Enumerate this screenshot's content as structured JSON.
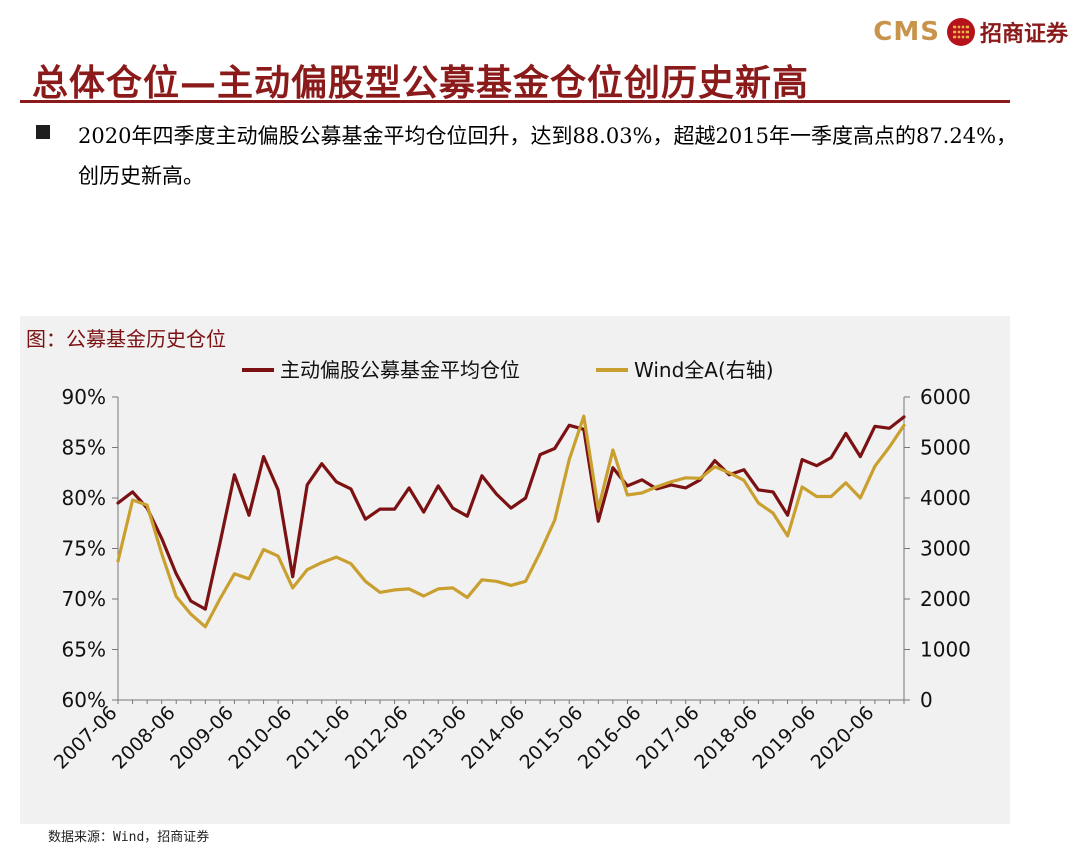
{
  "header": {
    "brand_cms": "CMS",
    "brand_cn": "招商证券",
    "title": "总体仓位—主动偏股型公募基金仓位创历史新高"
  },
  "bullet": {
    "text": "2020年四季度主动偏股公募基金平均仓位回升，达到88.03%，超越2015年一季度高点的87.24%，创历史新高。"
  },
  "chart_data": {
    "type": "line",
    "title": "图：公募基金历史仓位",
    "x": [
      "2007-06",
      "2007-09",
      "2007-12",
      "2008-03",
      "2008-06",
      "2008-09",
      "2008-12",
      "2009-03",
      "2009-06",
      "2009-09",
      "2009-12",
      "2010-03",
      "2010-06",
      "2010-09",
      "2010-12",
      "2011-03",
      "2011-06",
      "2011-09",
      "2011-12",
      "2012-03",
      "2012-06",
      "2012-09",
      "2012-12",
      "2013-03",
      "2013-06",
      "2013-09",
      "2013-12",
      "2014-03",
      "2014-06",
      "2014-09",
      "2014-12",
      "2015-03",
      "2015-06",
      "2015-09",
      "2015-12",
      "2016-03",
      "2016-06",
      "2016-09",
      "2016-12",
      "2017-03",
      "2017-06",
      "2017-09",
      "2017-12",
      "2018-03",
      "2018-06",
      "2018-09",
      "2018-12",
      "2019-03",
      "2019-06",
      "2019-09",
      "2019-12",
      "2020-03",
      "2020-06",
      "2020-09",
      "2020-12"
    ],
    "tick_labels": [
      "2007-06",
      "2008-06",
      "2009-06",
      "2010-06",
      "2011-06",
      "2012-06",
      "2013-06",
      "2014-06",
      "2015-06",
      "2016-06",
      "2017-06",
      "2018-06",
      "2019-06",
      "2020-06"
    ],
    "series": [
      {
        "name": "主动偏股公募基金平均仓位",
        "axis": "left",
        "color": "#7b1113",
        "values": [
          79.5,
          80.6,
          79.0,
          76.0,
          72.5,
          69.8,
          69.0,
          75.5,
          82.3,
          78.3,
          84.1,
          80.8,
          72.2,
          81.3,
          83.4,
          81.6,
          80.9,
          77.9,
          78.9,
          78.9,
          81.0,
          78.6,
          81.2,
          79.0,
          78.2,
          82.2,
          80.4,
          79.0,
          80.0,
          84.3,
          84.9,
          87.2,
          86.8,
          77.7,
          83.0,
          81.2,
          81.8,
          80.9,
          81.3,
          81.0,
          81.8,
          83.7,
          82.3,
          82.8,
          80.8,
          80.6,
          78.3,
          83.8,
          83.2,
          84.0,
          86.4,
          84.1,
          87.1,
          86.9,
          88.03
        ]
      },
      {
        "name": "Wind全A(右轴)",
        "axis": "right",
        "color": "#c9a030",
        "values": [
          2750,
          3960,
          3860,
          2900,
          2050,
          1700,
          1450,
          2000,
          2500,
          2400,
          2980,
          2850,
          2220,
          2580,
          2720,
          2830,
          2700,
          2350,
          2130,
          2180,
          2200,
          2060,
          2200,
          2220,
          2030,
          2380,
          2350,
          2270,
          2350,
          2920,
          3560,
          4760,
          5620,
          3780,
          4950,
          4060,
          4100,
          4220,
          4320,
          4400,
          4390,
          4620,
          4500,
          4350,
          3900,
          3700,
          3250,
          4220,
          4030,
          4030,
          4300,
          4000,
          4630,
          5010,
          5440
        ]
      }
    ],
    "y_left": {
      "min": 60,
      "max": 90,
      "ticks": [
        "60%",
        "65%",
        "70%",
        "75%",
        "80%",
        "85%",
        "90%"
      ]
    },
    "y_right": {
      "min": 0,
      "max": 6000,
      "ticks": [
        "0",
        "1000",
        "2000",
        "3000",
        "4000",
        "5000",
        "6000"
      ]
    },
    "legend_placement": "top-center",
    "grid": false
  },
  "source": "数据来源：Wind，招商证券"
}
